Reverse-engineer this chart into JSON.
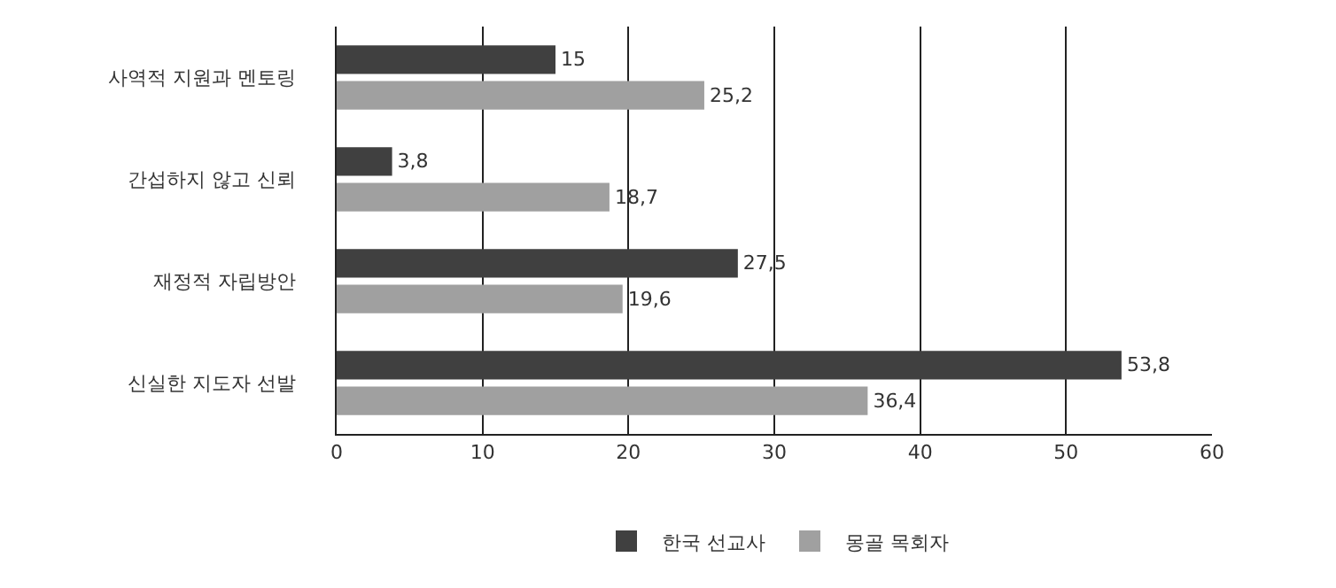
{
  "chart_data": {
    "type": "bar",
    "orientation": "horizontal",
    "categories": [
      "사역적 지원과 멘토링",
      "간섭하지 않고 신뢰",
      "재정적 자립방안",
      "신실한 지도자 선발"
    ],
    "series": [
      {
        "name": "한국 선교사",
        "color": "#404040",
        "values": [
          15,
          3.8,
          27.5,
          53.8
        ],
        "value_labels": [
          "15",
          "3,8",
          "27,5",
          "53,8"
        ]
      },
      {
        "name": "몽골 목회자",
        "color": "#a0a0a0",
        "values": [
          25.2,
          18.7,
          19.6,
          36.4
        ],
        "value_labels": [
          "25,2",
          "18,7",
          "19,6",
          "36,4"
        ]
      }
    ],
    "xlim": [
      0,
      60
    ],
    "xticks": [
      0,
      10,
      20,
      30,
      40,
      50,
      60
    ],
    "grid": "x",
    "legend": "bottom"
  }
}
